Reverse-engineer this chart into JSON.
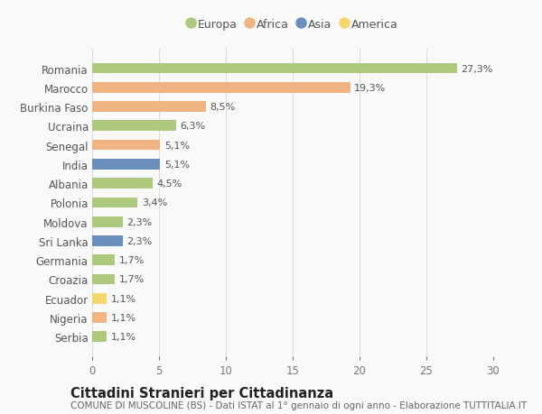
{
  "countries": [
    "Romania",
    "Marocco",
    "Burkina Faso",
    "Ucraina",
    "Senegal",
    "India",
    "Albania",
    "Polonia",
    "Moldova",
    "Sri Lanka",
    "Germania",
    "Croazia",
    "Ecuador",
    "Nigeria",
    "Serbia"
  ],
  "values": [
    27.3,
    19.3,
    8.5,
    6.3,
    5.1,
    5.1,
    4.5,
    3.4,
    2.3,
    2.3,
    1.7,
    1.7,
    1.1,
    1.1,
    1.1
  ],
  "labels": [
    "27,3%",
    "19,3%",
    "8,5%",
    "6,3%",
    "5,1%",
    "5,1%",
    "4,5%",
    "3,4%",
    "2,3%",
    "2,3%",
    "1,7%",
    "1,7%",
    "1,1%",
    "1,1%",
    "1,1%"
  ],
  "continents": [
    "Europa",
    "Africa",
    "Africa",
    "Europa",
    "Africa",
    "Asia",
    "Europa",
    "Europa",
    "Europa",
    "Asia",
    "Europa",
    "Europa",
    "America",
    "Africa",
    "Europa"
  ],
  "continent_colors": {
    "Europa": "#adc97e",
    "Africa": "#f0b482",
    "Asia": "#6b8fbd",
    "America": "#f5d56e"
  },
  "legend_order": [
    "Europa",
    "Africa",
    "Asia",
    "America"
  ],
  "xlim": [
    0,
    30
  ],
  "xticks": [
    0,
    5,
    10,
    15,
    20,
    25,
    30
  ],
  "title": "Cittadini Stranieri per Cittadinanza",
  "subtitle": "COMUNE DI MUSCOLINE (BS) - Dati ISTAT al 1° gennaio di ogni anno - Elaborazione TUTTITALIA.IT",
  "bg_color": "#f9f9f9",
  "grid_color": "#dddddd",
  "bar_height": 0.55,
  "label_fontsize": 8,
  "ytick_fontsize": 8.5,
  "title_fontsize": 10.5,
  "subtitle_fontsize": 7.5
}
